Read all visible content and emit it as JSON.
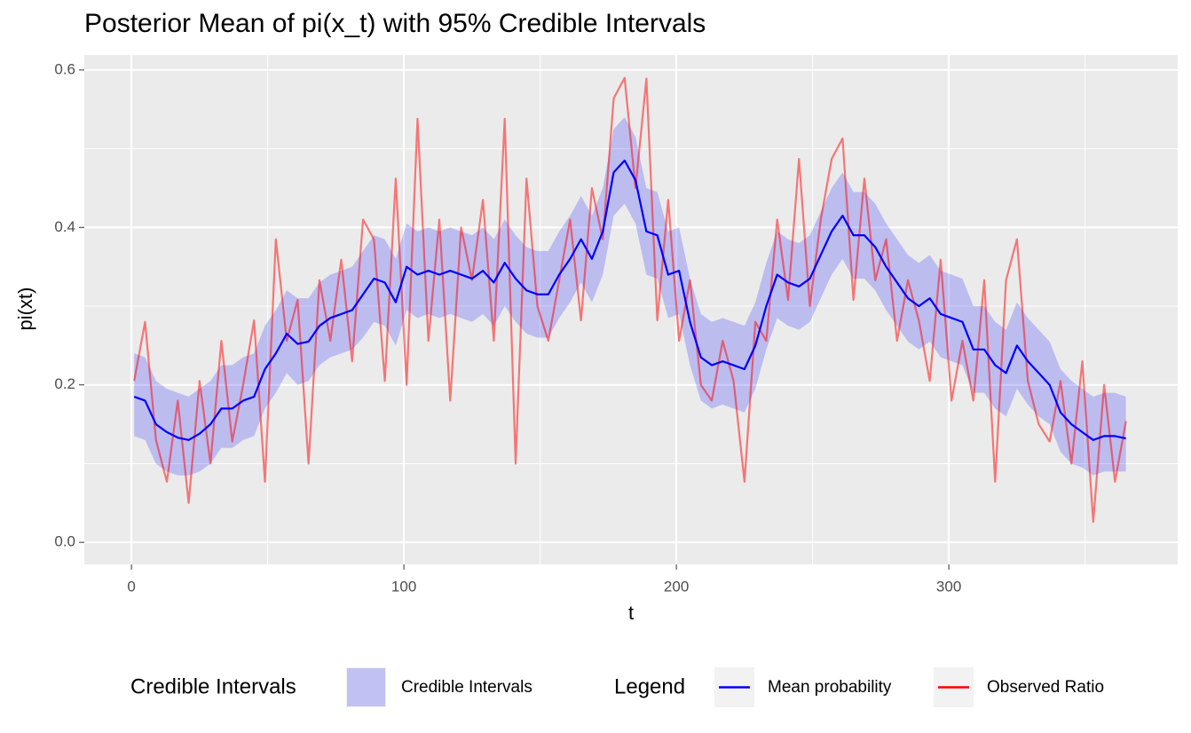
{
  "chart_data": {
    "type": "line",
    "title": "Posterior Mean of pi(x_t) with 95% Credible Intervals",
    "x_label": "t",
    "y_label": "pi(xt)",
    "xlim": [
      -17.3,
      384
    ],
    "ylim": [
      -0.028,
      0.619
    ],
    "xticks": [
      0,
      100,
      200,
      300
    ],
    "yticks": [
      {
        "value": 0,
        "label": "0.0"
      },
      0.2,
      0.4,
      0.6
    ],
    "x_minor_grid": [
      50,
      150,
      250,
      350
    ],
    "y_minor_grid": [
      0.1,
      0.3,
      0.5
    ],
    "grid": true,
    "x": [
      1,
      5,
      9,
      13,
      17,
      21,
      25,
      29,
      33,
      37,
      41,
      45,
      49,
      53,
      57,
      61,
      65,
      69,
      73,
      77,
      81,
      85,
      89,
      93,
      97,
      101,
      105,
      109,
      113,
      117,
      121,
      125,
      129,
      133,
      137,
      141,
      145,
      149,
      153,
      157,
      161,
      165,
      169,
      173,
      177,
      181,
      185,
      189,
      193,
      197,
      201,
      205,
      209,
      213,
      217,
      221,
      225,
      229,
      233,
      237,
      241,
      245,
      249,
      253,
      257,
      261,
      265,
      269,
      273,
      277,
      281,
      285,
      289,
      293,
      297,
      301,
      305,
      309,
      313,
      317,
      321,
      325,
      329,
      333,
      337,
      341,
      345,
      349,
      353,
      357,
      361,
      365
    ],
    "ribbon": {
      "legend_title": "Credible Intervals",
      "name": "Credible Intervals",
      "color": "blue",
      "alpha": 0.2,
      "lower": [
        0.135,
        0.13,
        0.1,
        0.09,
        0.085,
        0.085,
        0.09,
        0.1,
        0.12,
        0.12,
        0.13,
        0.135,
        0.17,
        0.19,
        0.215,
        0.2,
        0.205,
        0.225,
        0.235,
        0.24,
        0.245,
        0.26,
        0.28,
        0.275,
        0.25,
        0.295,
        0.285,
        0.29,
        0.285,
        0.29,
        0.285,
        0.28,
        0.29,
        0.275,
        0.3,
        0.28,
        0.265,
        0.26,
        0.26,
        0.285,
        0.305,
        0.33,
        0.305,
        0.34,
        0.415,
        0.43,
        0.405,
        0.34,
        0.335,
        0.285,
        0.29,
        0.225,
        0.18,
        0.17,
        0.175,
        0.17,
        0.165,
        0.195,
        0.245,
        0.285,
        0.275,
        0.27,
        0.28,
        0.31,
        0.34,
        0.36,
        0.335,
        0.335,
        0.32,
        0.295,
        0.275,
        0.255,
        0.245,
        0.255,
        0.235,
        0.23,
        0.225,
        0.19,
        0.19,
        0.17,
        0.16,
        0.195,
        0.175,
        0.16,
        0.15,
        0.115,
        0.1,
        0.095,
        0.085,
        0.09,
        0.09,
        0.09
      ],
      "upper": [
        0.24,
        0.235,
        0.205,
        0.195,
        0.19,
        0.185,
        0.195,
        0.205,
        0.225,
        0.225,
        0.235,
        0.24,
        0.275,
        0.295,
        0.32,
        0.31,
        0.31,
        0.33,
        0.34,
        0.345,
        0.35,
        0.37,
        0.39,
        0.385,
        0.36,
        0.405,
        0.395,
        0.4,
        0.395,
        0.4,
        0.395,
        0.39,
        0.4,
        0.385,
        0.41,
        0.39,
        0.375,
        0.37,
        0.37,
        0.395,
        0.415,
        0.44,
        0.415,
        0.45,
        0.525,
        0.54,
        0.515,
        0.45,
        0.445,
        0.395,
        0.4,
        0.335,
        0.29,
        0.28,
        0.285,
        0.28,
        0.275,
        0.305,
        0.355,
        0.395,
        0.385,
        0.38,
        0.39,
        0.42,
        0.45,
        0.47,
        0.445,
        0.445,
        0.43,
        0.405,
        0.385,
        0.365,
        0.355,
        0.365,
        0.345,
        0.34,
        0.335,
        0.3,
        0.3,
        0.28,
        0.27,
        0.305,
        0.285,
        0.27,
        0.255,
        0.22,
        0.205,
        0.195,
        0.185,
        0.19,
        0.19,
        0.185
      ]
    },
    "legend_title": "Legend",
    "series": [
      {
        "name": "Mean probability",
        "color": "blue",
        "alpha": 1,
        "values": [
          0.185,
          0.18,
          0.15,
          0.14,
          0.133,
          0.13,
          0.138,
          0.15,
          0.17,
          0.17,
          0.18,
          0.185,
          0.22,
          0.24,
          0.265,
          0.252,
          0.255,
          0.275,
          0.285,
          0.29,
          0.295,
          0.315,
          0.335,
          0.33,
          0.305,
          0.35,
          0.34,
          0.345,
          0.34,
          0.345,
          0.34,
          0.335,
          0.345,
          0.33,
          0.355,
          0.335,
          0.32,
          0.315,
          0.315,
          0.34,
          0.36,
          0.385,
          0.36,
          0.395,
          0.47,
          0.485,
          0.46,
          0.395,
          0.39,
          0.34,
          0.345,
          0.28,
          0.235,
          0.225,
          0.23,
          0.225,
          0.22,
          0.25,
          0.3,
          0.34,
          0.33,
          0.325,
          0.335,
          0.365,
          0.395,
          0.415,
          0.39,
          0.39,
          0.375,
          0.35,
          0.33,
          0.31,
          0.3,
          0.31,
          0.29,
          0.285,
          0.28,
          0.245,
          0.245,
          0.225,
          0.215,
          0.25,
          0.23,
          0.215,
          0.2,
          0.165,
          0.15,
          0.14,
          0.13,
          0.135,
          0.135,
          0.132
        ]
      },
      {
        "name": "Observed Ratio",
        "color": "red",
        "alpha": 0.5,
        "values": [
          0.205,
          0.28,
          0.13,
          0.077,
          0.18,
          0.05,
          0.205,
          0.1,
          0.256,
          0.128,
          0.2,
          0.282,
          0.077,
          0.385,
          0.256,
          0.308,
          0.1,
          0.333,
          0.256,
          0.359,
          0.23,
          0.41,
          0.385,
          0.205,
          0.462,
          0.2,
          0.538,
          0.256,
          0.41,
          0.18,
          0.4,
          0.333,
          0.435,
          0.256,
          0.538,
          0.1,
          0.462,
          0.3,
          0.256,
          0.333,
          0.41,
          0.282,
          0.45,
          0.385,
          0.564,
          0.59,
          0.45,
          0.589,
          0.282,
          0.435,
          0.256,
          0.333,
          0.2,
          0.18,
          0.256,
          0.205,
          0.077,
          0.28,
          0.256,
          0.41,
          0.308,
          0.487,
          0.3,
          0.41,
          0.487,
          0.513,
          0.308,
          0.462,
          0.333,
          0.385,
          0.256,
          0.333,
          0.282,
          0.205,
          0.359,
          0.18,
          0.256,
          0.18,
          0.333,
          0.077,
          0.333,
          0.385,
          0.205,
          0.15,
          0.128,
          0.205,
          0.1,
          0.23,
          0.026,
          0.2,
          0.077,
          0.154
        ]
      }
    ]
  }
}
